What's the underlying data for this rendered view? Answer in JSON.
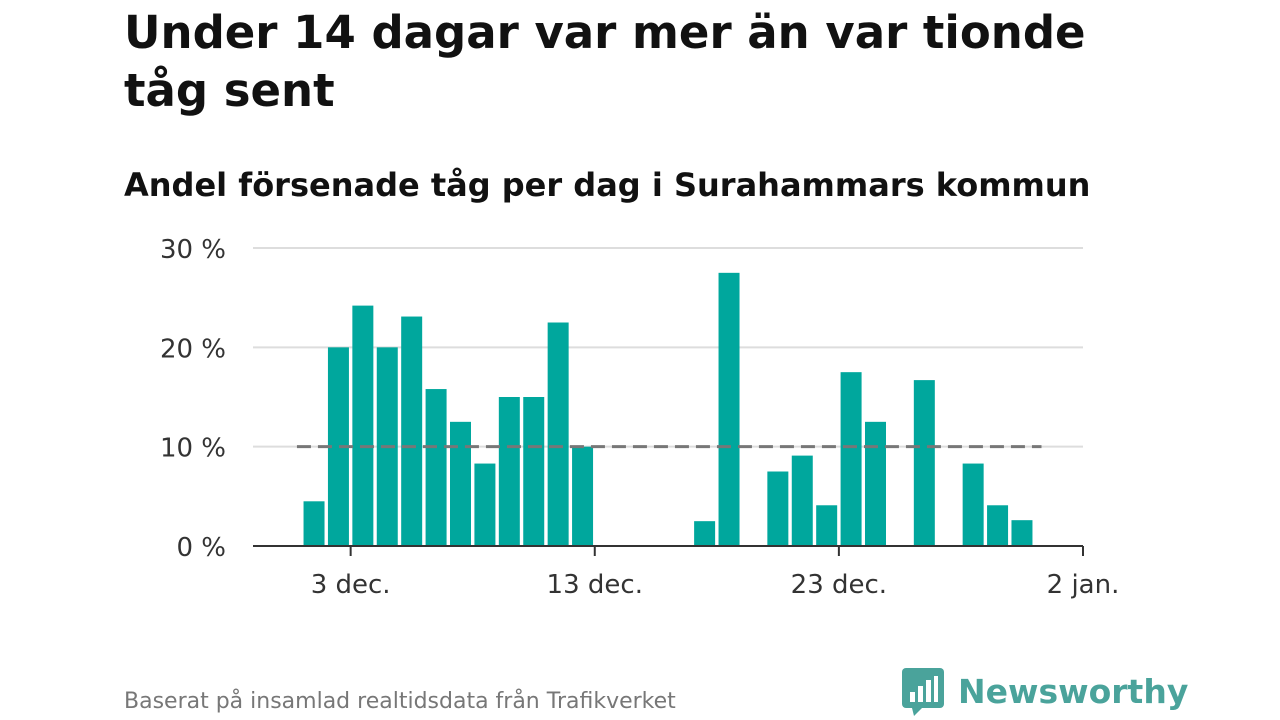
{
  "header": {
    "title": "Under 14 dagar var mer än var tionde tåg sent",
    "subtitle": "Andel försenade tåg per dag i Surahammars kommun"
  },
  "footer": {
    "source": "Baserat på insamlad realtidsdata från Trafikverket",
    "brand": "Newsworthy"
  },
  "chart_data": {
    "type": "bar",
    "x": [
      "2020-12-01",
      "2020-12-02",
      "2020-12-03",
      "2020-12-04",
      "2020-12-05",
      "2020-12-06",
      "2020-12-07",
      "2020-12-08",
      "2020-12-09",
      "2020-12-10",
      "2020-12-11",
      "2020-12-12",
      "2020-12-13",
      "2020-12-14",
      "2020-12-15",
      "2020-12-16",
      "2020-12-17",
      "2020-12-18",
      "2020-12-19",
      "2020-12-20",
      "2020-12-21",
      "2020-12-22",
      "2020-12-23",
      "2020-12-24",
      "2020-12-25",
      "2020-12-26",
      "2020-12-27",
      "2020-12-28",
      "2020-12-29",
      "2020-12-30"
    ],
    "values": [
      4.5,
      20,
      24.2,
      20,
      23.1,
      15.8,
      12.5,
      8.3,
      15,
      15,
      22.5,
      10,
      0,
      0,
      0,
      0,
      2.5,
      27.5,
      0,
      7.5,
      9.1,
      4.1,
      17.5,
      12.5,
      0,
      16.7,
      0,
      8.3,
      4.1,
      2.6
    ],
    "reference_line": 10,
    "xticks": [
      {
        "value": "2020-12-03",
        "label": "3 dec."
      },
      {
        "value": "2020-12-13",
        "label": "13 dec."
      },
      {
        "value": "2020-12-23",
        "label": "23 dec."
      },
      {
        "value": "2021-01-02",
        "label": "2 jan."
      }
    ],
    "yticks": [
      {
        "value": 0,
        "label": "0 %"
      },
      {
        "value": 10,
        "label": "10 %"
      },
      {
        "value": 20,
        "label": "20 %"
      },
      {
        "value": 30,
        "label": "30 %"
      }
    ],
    "ylim": [
      0,
      30
    ],
    "xlim": [
      "2020-11-29",
      "2021-01-02"
    ],
    "grid": true,
    "colors": {
      "bar": "#00a79d",
      "grid": "#dddddd",
      "axis": "#333333",
      "reference_line": "#777777",
      "brand": "#4aa39b"
    }
  }
}
